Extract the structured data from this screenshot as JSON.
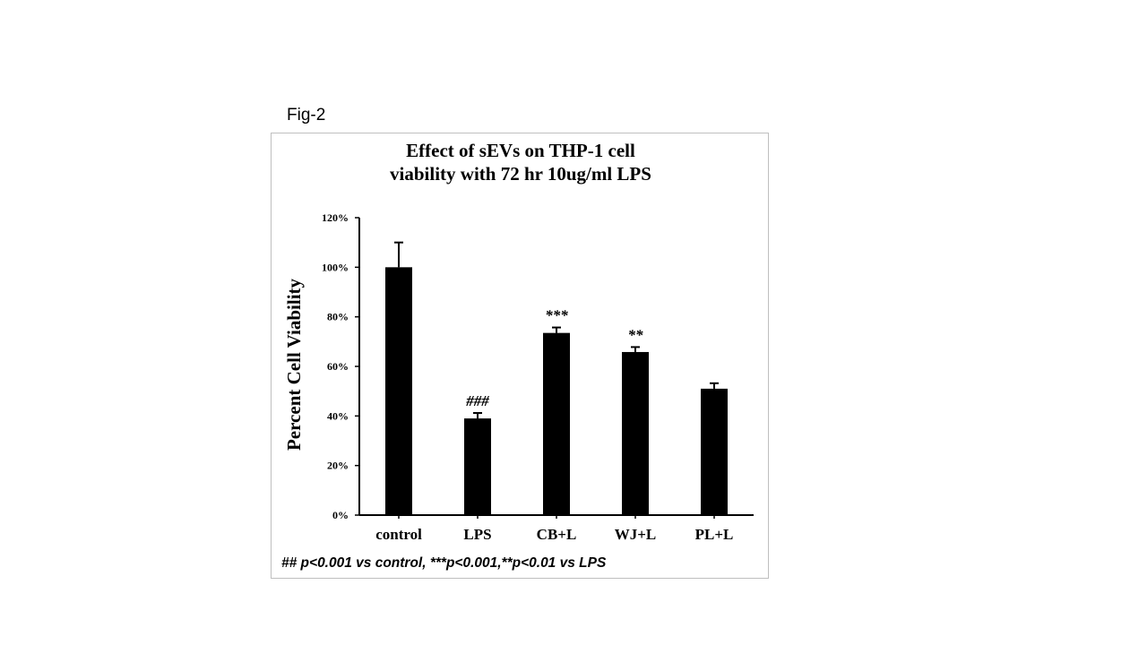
{
  "figure_label": "Fig-2",
  "footnote": "## p<0.001 vs control,  ***p<0.001,**p<0.01  vs LPS",
  "chart_data": {
    "type": "bar",
    "title_lines": [
      "Effect of sEVs on THP-1 cell",
      "viability with 72 hr 10ug/ml LPS"
    ],
    "xlabel": "",
    "ylabel": "Percent Cell Viability",
    "categories": [
      "control",
      "LPS",
      "CB+L",
      "WJ+L",
      "PL+L"
    ],
    "values": [
      100,
      39,
      73.5,
      65.8,
      51
    ],
    "errors": [
      10,
      2.2,
      2.2,
      2.0,
      2.2
    ],
    "annotations": [
      "",
      "###",
      "***",
      "**",
      ""
    ],
    "ylim": [
      0,
      120
    ],
    "yticks": [
      0,
      20,
      40,
      60,
      80,
      100,
      120
    ],
    "ytick_labels": [
      "0%",
      "20%",
      "40%",
      "60%",
      "80%",
      "100%",
      "120%"
    ],
    "grid": false,
    "bar_color": "#000000"
  }
}
